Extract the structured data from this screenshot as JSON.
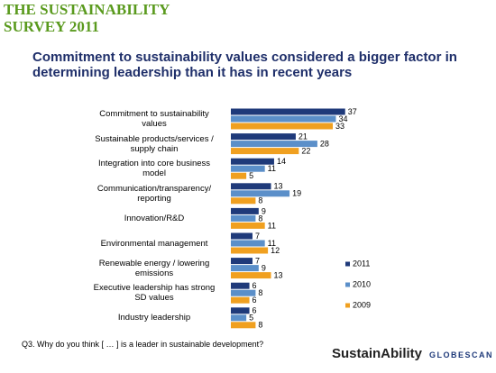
{
  "header": {
    "line1": "THE SUSTAINABILITY",
    "line2": "SURVEY 2011"
  },
  "chart_data": {
    "type": "bar",
    "orientation": "horizontal",
    "title": "Commitment to sustainability values considered a bigger factor in determining leadership than it has in recent years",
    "categories": [
      "Commitment to sustainability values",
      "Sustainable products/services / supply chain",
      "Integration into core business model",
      "Communication/transparency/ reporting",
      "Innovation/R&D",
      "Environmental management",
      "Renewable energy / lowering emissions",
      "Executive leadership has strong SD values",
      "Industry leadership"
    ],
    "series": [
      {
        "name": "2011",
        "color": "#1f3a7a",
        "values": [
          37,
          21,
          14,
          13,
          9,
          7,
          7,
          6,
          6
        ]
      },
      {
        "name": "2010",
        "color": "#5b8fc9",
        "values": [
          34,
          28,
          11,
          19,
          8,
          11,
          9,
          8,
          5
        ]
      },
      {
        "name": "2009",
        "color": "#f0a020",
        "values": [
          33,
          22,
          5,
          8,
          11,
          12,
          13,
          6,
          8
        ]
      }
    ],
    "xlim": [
      0,
      40
    ],
    "legend": "right"
  },
  "footer": {
    "question": "Q3. Why do you think [ … ] is a leader in sustainable development?"
  },
  "logos": [
    "SustainAbility",
    "GLOBESCAN"
  ]
}
